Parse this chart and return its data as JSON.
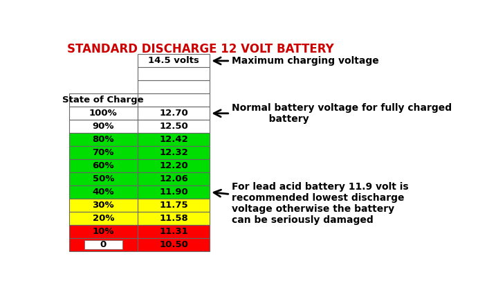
{
  "title": "STANDARD DISCHARGE 12 VOLT BATTERY",
  "title_color": "#CC0000",
  "title_fontsize": 12,
  "rows": [
    {
      "col1": "",
      "col2": "14.5 volts",
      "bg1": "#ffffff",
      "bg2": "#ffffff",
      "col1_border": false,
      "bold": true
    },
    {
      "col1": "",
      "col2": "",
      "bg1": "#ffffff",
      "bg2": "#ffffff",
      "col1_border": false,
      "bold": false
    },
    {
      "col1": "",
      "col2": "",
      "bg1": "#ffffff",
      "bg2": "#ffffff",
      "col1_border": false,
      "bold": false
    },
    {
      "col1": "State of Charge",
      "col2": "",
      "bg1": "#ffffff",
      "bg2": "#ffffff",
      "col1_border": true,
      "bold": true
    },
    {
      "col1": "100%",
      "col2": "12.70",
      "bg1": "#ffffff",
      "bg2": "#ffffff",
      "col1_border": true,
      "bold": true
    },
    {
      "col1": "90%",
      "col2": "12.50",
      "bg1": "#ffffff",
      "bg2": "#ffffff",
      "col1_border": true,
      "bold": true
    },
    {
      "col1": "80%",
      "col2": "12.42",
      "bg1": "#00dd00",
      "bg2": "#00dd00",
      "col1_border": true,
      "bold": true
    },
    {
      "col1": "70%",
      "col2": "12.32",
      "bg1": "#00dd00",
      "bg2": "#00dd00",
      "col1_border": true,
      "bold": true
    },
    {
      "col1": "60%",
      "col2": "12.20",
      "bg1": "#00dd00",
      "bg2": "#00dd00",
      "col1_border": true,
      "bold": true
    },
    {
      "col1": "50%",
      "col2": "12.06",
      "bg1": "#00dd00",
      "bg2": "#00dd00",
      "col1_border": true,
      "bold": true
    },
    {
      "col1": "40%",
      "col2": "11.90",
      "bg1": "#00dd00",
      "bg2": "#00dd00",
      "col1_border": true,
      "bold": true
    },
    {
      "col1": "30%",
      "col2": "11.75",
      "bg1": "#ffff00",
      "bg2": "#ffff00",
      "col1_border": true,
      "bold": true
    },
    {
      "col1": "20%",
      "col2": "11.58",
      "bg1": "#ffff00",
      "bg2": "#ffff00",
      "col1_border": true,
      "bold": true
    },
    {
      "col1": "10%",
      "col2": "11.31",
      "bg1": "#ff0000",
      "bg2": "#ff0000",
      "col1_border": true,
      "bold": true
    },
    {
      "col1": "0",
      "col2": "10.50",
      "bg1": "#ff0000",
      "bg2": "#ff0000",
      "col1_border": true,
      "bold": true,
      "col1_inner": "#ffffff"
    }
  ],
  "ann1": {
    "text": "Maximum charging voltage",
    "row": 0,
    "fontsize": 10
  },
  "ann2": {
    "text": "Normal battery voltage for fully charged\n           battery",
    "row": 4,
    "fontsize": 10
  },
  "ann3": {
    "text": "For lead acid battery 11.9 volt is\nrecommended lowest discharge\nvoltage otherwise the battery\ncan be seriously damaged",
    "row": 10,
    "fontsize": 10
  }
}
